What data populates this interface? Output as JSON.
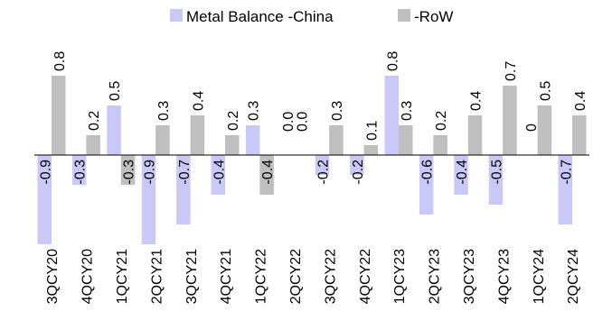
{
  "chart_data": {
    "type": "bar",
    "title": "",
    "xlabel": "",
    "ylabel": "",
    "ylim": [
      -1.0,
      0.9
    ],
    "grid": false,
    "legend": {
      "placement": "top-center"
    },
    "categories": [
      "3QCY20",
      "4QCY20",
      "1QCY21",
      "2QCY21",
      "3QCY21",
      "4QCY21",
      "1QCY22",
      "2QCY22",
      "3QCY22",
      "4QCY22",
      "1QCY23",
      "2QCY23",
      "3QCY23",
      "4QCY23",
      "1QCY24",
      "2QCY24"
    ],
    "series": [
      {
        "name": "Metal Balance -China",
        "color": "#c9c9f7",
        "values": [
          -0.9,
          -0.3,
          0.5,
          -0.9,
          -0.7,
          -0.4,
          0.3,
          0.0,
          -0.2,
          -0.2,
          0.8,
          -0.6,
          -0.4,
          -0.5,
          0,
          -0.7
        ],
        "labels": [
          "-0.9",
          "-0.3",
          "0.5",
          "-0.9",
          "-0.7",
          "-0.4",
          "0.3",
          "0.0",
          "-0.2",
          "-0.2",
          "0.8",
          "-0.6",
          "-0.4",
          "-0.5",
          "0",
          "-0.7"
        ]
      },
      {
        "name": "-RoW",
        "color": "#bfbfbf",
        "values": [
          0.8,
          0.2,
          -0.3,
          0.3,
          0.4,
          0.2,
          -0.4,
          0.0,
          0.3,
          0.1,
          0.3,
          0.2,
          0.4,
          0.7,
          0.5,
          0.4
        ],
        "labels": [
          "0.8",
          "0.2",
          "-0.3",
          "0.3",
          "0.4",
          "0.2",
          "-0.4",
          "0.0",
          "0.3",
          "0.1",
          "0.3",
          "0.2",
          "0.4",
          "0.7",
          "0.5",
          "0.4"
        ]
      }
    ]
  }
}
